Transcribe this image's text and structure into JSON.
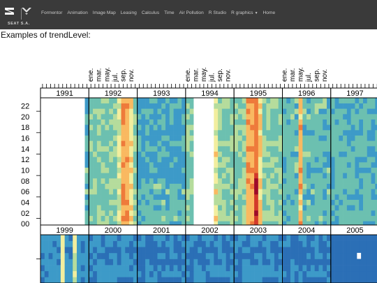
{
  "navbar": {
    "brand_caption": "SEAT S.A.",
    "items": [
      {
        "label": "Formentor"
      },
      {
        "label": "Animation"
      },
      {
        "label": "Image Map"
      },
      {
        "label": "Leasing"
      },
      {
        "label": "Calculus"
      },
      {
        "label": "Time"
      },
      {
        "label": "Air Pollution"
      },
      {
        "label": "R Studio"
      },
      {
        "label": "R graphics"
      },
      {
        "label": "Home"
      }
    ],
    "dropdown_icon": "caret-down-icon",
    "logo_icons": [
      "seat-s-logo-icon",
      "cupra-logo-icon"
    ]
  },
  "page": {
    "heading": "Examples of trendLevel:"
  },
  "chart_data": {
    "type": "heatmap",
    "month_labels": [
      "ene.",
      "mar.",
      "may.",
      "jul.",
      "sep.",
      "nov."
    ],
    "y_tick_labels": [
      "00",
      "02",
      "04",
      "06",
      "08",
      "10",
      "12",
      "14",
      "16",
      "18",
      "20",
      "22"
    ],
    "panels_row1": [
      "1991",
      "1992",
      "1993",
      "1994",
      "1995",
      "1996",
      "1997"
    ],
    "panels_row2": [
      "1999",
      "2000",
      "2001",
      "2002",
      "2003",
      "2004",
      "2005"
    ],
    "colors": {
      "palette": [
        "#3b3fa0",
        "#2b6fb6",
        "#3d9ac8",
        "#6cc0b0",
        "#b5dc9c",
        "#f2ee9e",
        "#f9b961",
        "#ee7a3b",
        "#d33a2a",
        "#9e0b2a"
      ]
    }
  }
}
